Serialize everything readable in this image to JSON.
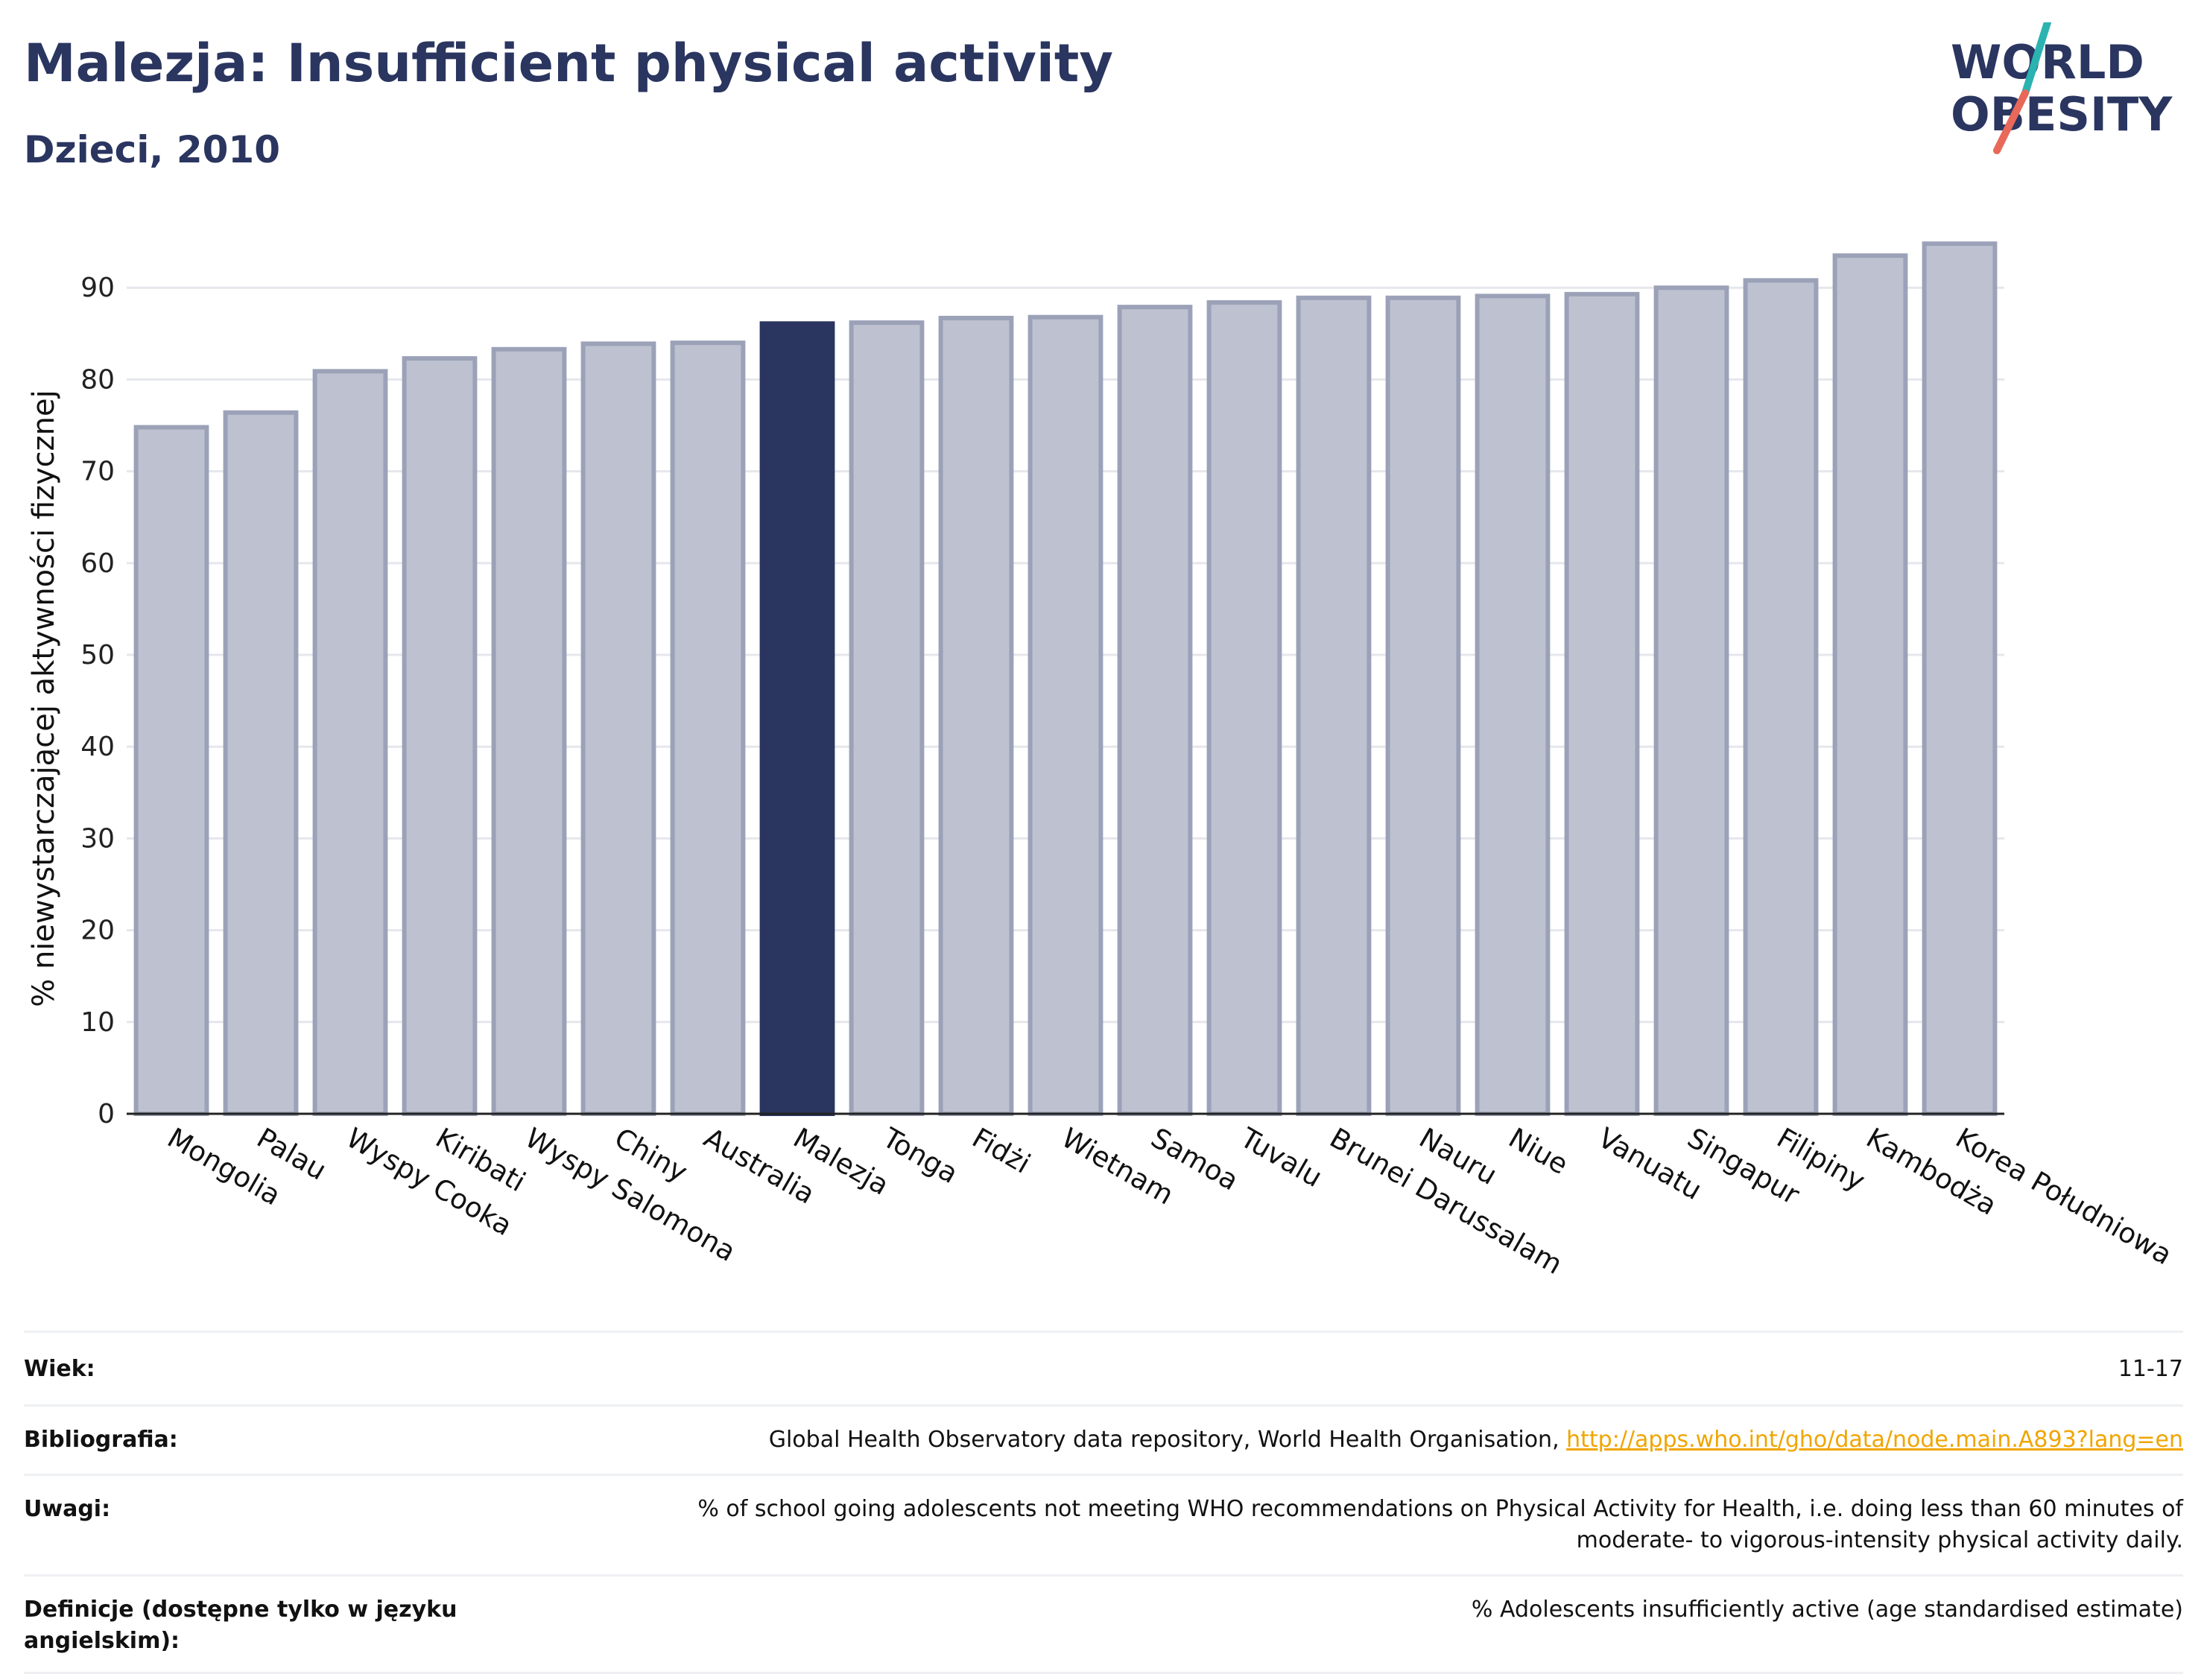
{
  "header": {
    "title": "Malezja: Insufficient physical activity",
    "subtitle": "Dzieci, 2010"
  },
  "logo": {
    "line1": "WORLD",
    "line2": "OBESITY",
    "colors": {
      "text": "#2a3560",
      "slash_teal": "#2ab3b1",
      "slash_red": "#e8685a"
    }
  },
  "chart_data": {
    "type": "bar",
    "title": "",
    "xlabel": "",
    "ylabel": "% niewystarczającej aktywności fizycznej",
    "ylim": [
      0,
      97
    ],
    "yticks": [
      0,
      10,
      20,
      30,
      40,
      50,
      60,
      70,
      80,
      90
    ],
    "grid": true,
    "highlight": "Malezja",
    "colors": {
      "bar": "#bec2d0",
      "bar_edge": "#9ba2b8",
      "highlight": "#2a3560",
      "grid": "#e5e7ec",
      "axis": "#222222"
    },
    "categories": [
      "Mongolia",
      "Palau",
      "Wyspy Cooka",
      "Kiribati",
      "Wyspy Salomona",
      "Chiny",
      "Australia",
      "Malezja",
      "Tonga",
      "Fidżi",
      "Wietnam",
      "Samoa",
      "Tuvalu",
      "Brunei Darussalam",
      "Nauru",
      "Niue",
      "Vanuatu",
      "Singapur",
      "Filipiny",
      "Kambodża",
      "Korea Południowa"
    ],
    "values": [
      74.8,
      76.4,
      80.9,
      82.3,
      83.3,
      83.9,
      84.0,
      86.1,
      86.2,
      86.7,
      86.8,
      87.9,
      88.4,
      88.9,
      88.9,
      89.1,
      89.3,
      90.0,
      90.8,
      93.5,
      94.8
    ]
  },
  "meta": {
    "rows": [
      {
        "label": "Wiek:",
        "value": "11-17"
      },
      {
        "label": "Bibliografia:",
        "value": "Global Health Observatory data repository, World Health Organisation, ",
        "link": "http://apps.who.int/gho/data/node.main.A893?lang=en"
      },
      {
        "label": "Uwagi:",
        "value": "% of school going adolescents not meeting WHO recommendations on Physical Activity for Health, i.e. doing less than 60 minutes of moderate- to vigorous-intensity physical activity daily."
      },
      {
        "label": "Definicje (dostępne tylko w języku angielskim):",
        "value": "% Adolescents insufficiently active (age standardised estimate)"
      }
    ]
  }
}
